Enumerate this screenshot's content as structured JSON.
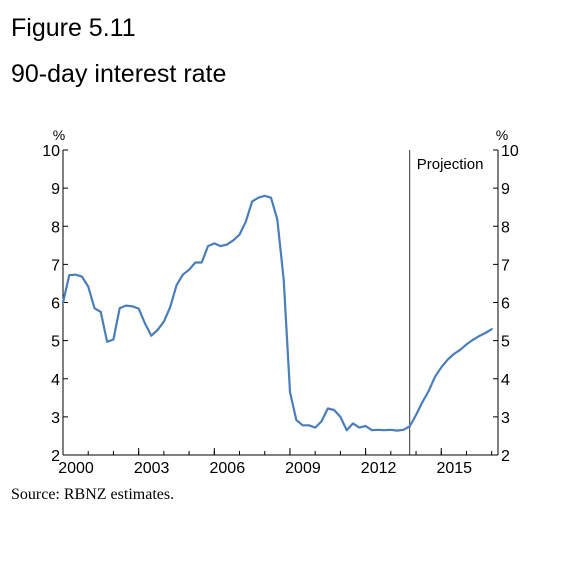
{
  "figure": {
    "number": "Figure 5.11",
    "subtitle": "90-day interest rate",
    "source": "Source: RBNZ estimates."
  },
  "chart_data": {
    "type": "line",
    "title": "90-day interest rate",
    "xlabel": "",
    "ylabel": "%",
    "ylabel_right": "%",
    "xlim": [
      2000.0,
      2017.25
    ],
    "ylim": [
      2,
      10
    ],
    "yticks": [
      2,
      3,
      4,
      5,
      6,
      7,
      8,
      9,
      10
    ],
    "xticks": [
      2000,
      2003,
      2006,
      2009,
      2012,
      2015
    ],
    "grid": false,
    "line_color": "#4a7ebb",
    "projection": {
      "x": 2013.75,
      "label": "Projection"
    },
    "series": [
      {
        "name": "",
        "x": [
          2000.0,
          2000.25,
          2000.5,
          2000.75,
          2001.0,
          2001.25,
          2001.5,
          2001.75,
          2002.0,
          2002.25,
          2002.5,
          2002.75,
          2003.0,
          2003.25,
          2003.5,
          2003.75,
          2004.0,
          2004.25,
          2004.5,
          2004.75,
          2005.0,
          2005.25,
          2005.5,
          2005.75,
          2006.0,
          2006.25,
          2006.5,
          2006.75,
          2007.0,
          2007.25,
          2007.5,
          2007.75,
          2008.0,
          2008.25,
          2008.5,
          2008.75,
          2009.0,
          2009.25,
          2009.5,
          2009.75,
          2010.0,
          2010.25,
          2010.5,
          2010.75,
          2011.0,
          2011.25,
          2011.5,
          2011.75,
          2012.0,
          2012.25,
          2012.5,
          2012.75,
          2013.0,
          2013.25,
          2013.5,
          2013.75,
          2014.0,
          2014.25,
          2014.5,
          2014.75,
          2015.0,
          2015.25,
          2015.5,
          2015.75,
          2016.0,
          2016.25,
          2016.5,
          2016.75,
          2017.0
        ],
        "values": [
          6.0,
          6.72,
          6.73,
          6.68,
          6.42,
          5.85,
          5.75,
          4.97,
          5.03,
          5.85,
          5.92,
          5.9,
          5.84,
          5.45,
          5.13,
          5.28,
          5.5,
          5.88,
          6.45,
          6.73,
          6.86,
          7.05,
          7.05,
          7.48,
          7.55,
          7.48,
          7.52,
          7.63,
          7.78,
          8.12,
          8.65,
          8.75,
          8.8,
          8.75,
          8.18,
          6.6,
          3.65,
          2.92,
          2.78,
          2.78,
          2.72,
          2.88,
          3.22,
          3.18,
          3.0,
          2.65,
          2.83,
          2.72,
          2.76,
          2.65,
          2.66,
          2.65,
          2.66,
          2.64,
          2.66,
          2.75,
          3.05,
          3.38,
          3.68,
          4.05,
          4.3,
          4.5,
          4.65,
          4.76,
          4.9,
          5.02,
          5.12,
          5.2,
          5.3
        ]
      }
    ]
  }
}
